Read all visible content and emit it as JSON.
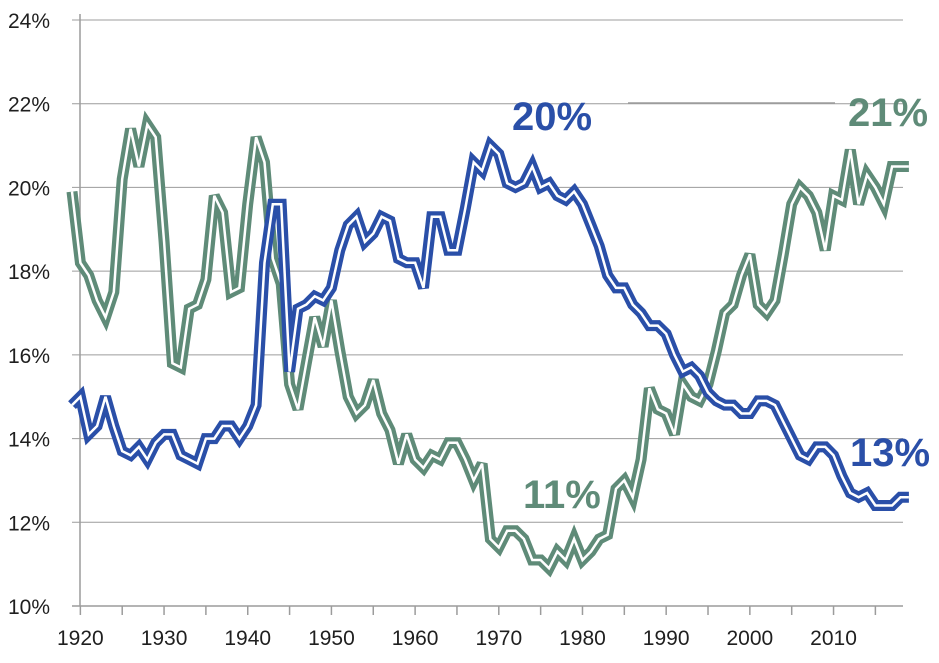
{
  "chart_data": {
    "type": "line",
    "title": "",
    "xlabel": "",
    "ylabel": "",
    "xlim": [
      1919,
      2019
    ],
    "ylim": [
      10,
      24
    ],
    "grid": true,
    "legend": "none",
    "x_ticks": [
      "1920",
      "1930",
      "1940",
      "1950",
      "1960",
      "1970",
      "1980",
      "1990",
      "2000",
      "2010"
    ],
    "y_ticks": [
      "10%",
      "12%",
      "14%",
      "16%",
      "18%",
      "20%",
      "22%",
      "24%"
    ],
    "x": [
      1919,
      1920,
      1921,
      1922,
      1923,
      1924,
      1925,
      1926,
      1927,
      1928,
      1929,
      1930,
      1931,
      1932,
      1933,
      1934,
      1935,
      1936,
      1937,
      1938,
      1939,
      1940,
      1941,
      1942,
      1943,
      1944,
      1945,
      1946,
      1947,
      1948,
      1949,
      1950,
      1951,
      1952,
      1953,
      1954,
      1955,
      1956,
      1957,
      1958,
      1959,
      1960,
      1961,
      1962,
      1963,
      1964,
      1965,
      1966,
      1967,
      1968,
      1969,
      1970,
      1971,
      1972,
      1973,
      1974,
      1975,
      1976,
      1977,
      1978,
      1979,
      1980,
      1981,
      1982,
      1983,
      1984,
      1985,
      1986,
      1987,
      1988,
      1989,
      1990,
      1991,
      1992,
      1993,
      1994,
      1995,
      1996,
      1997,
      1998,
      1999,
      2000,
      2001,
      2002,
      2003,
      2004,
      2005,
      2006,
      2007,
      2008,
      2009,
      2010,
      2011,
      2012,
      2013,
      2014,
      2015,
      2016,
      2017,
      2018,
      2019
    ],
    "series": [
      {
        "color": "#2a4fa8",
        "values": [
          14.8,
          15.0,
          14.1,
          14.3,
          15.0,
          14.3,
          13.7,
          13.6,
          13.8,
          13.5,
          13.9,
          14.1,
          14.1,
          13.6,
          13.5,
          13.4,
          14.0,
          14.0,
          14.3,
          14.3,
          14.0,
          14.3,
          14.8,
          18.2,
          19.6,
          19.6,
          15.6,
          17.1,
          17.2,
          17.4,
          17.3,
          17.6,
          18.5,
          19.1,
          19.3,
          18.7,
          18.9,
          19.3,
          19.2,
          18.3,
          18.2,
          18.2,
          17.6,
          19.3,
          19.3,
          18.5,
          18.5,
          19.5,
          20.6,
          20.4,
          21.0,
          20.8,
          20.1,
          20.0,
          20.1,
          20.5,
          20.0,
          20.1,
          19.8,
          19.7,
          19.9,
          19.6,
          19.1,
          18.6,
          17.9,
          17.6,
          17.6,
          17.2,
          17.0,
          16.7,
          16.7,
          16.5,
          16.0,
          15.6,
          15.7,
          15.5,
          15.1,
          14.9,
          14.8,
          14.8,
          14.6,
          14.6,
          14.9,
          14.9,
          14.8,
          14.4,
          14.0,
          13.6,
          13.5,
          13.8,
          13.8,
          13.6,
          13.1,
          12.7,
          12.6,
          12.7,
          12.4,
          12.4,
          12.4,
          12.6,
          12.6
        ],
        "label_value": "20%",
        "end_label": "13%"
      },
      {
        "color": "#5f8b78",
        "values": [
          19.9,
          18.2,
          17.9,
          17.3,
          16.9,
          17.5,
          20.2,
          21.4,
          20.5,
          21.5,
          21.2,
          18.7,
          15.8,
          15.7,
          17.1,
          17.2,
          17.8,
          19.8,
          19.4,
          17.5,
          17.6,
          19.6,
          21.2,
          20.6,
          18.3,
          17.7,
          15.3,
          14.7,
          15.8,
          16.9,
          16.2,
          17.3,
          16.1,
          15.0,
          14.6,
          14.8,
          15.4,
          14.6,
          14.2,
          13.4,
          14.1,
          13.5,
          13.3,
          13.6,
          13.5,
          13.9,
          13.9,
          13.5,
          13.0,
          13.4,
          11.6,
          11.4,
          11.8,
          11.8,
          11.6,
          11.1,
          11.1,
          10.9,
          11.3,
          11.1,
          11.6,
          11.1,
          11.3,
          11.6,
          11.7,
          12.8,
          13.0,
          12.6,
          13.5,
          15.2,
          14.7,
          14.6,
          14.1,
          15.3,
          15.0,
          14.9,
          15.3,
          16.1,
          17.0,
          17.2,
          17.9,
          18.4,
          17.2,
          17.0,
          17.3,
          18.4,
          19.6,
          20.0,
          19.8,
          19.4,
          18.5,
          19.8,
          19.7,
          20.9,
          19.6,
          20.3,
          20.0,
          19.6,
          20.5,
          20.5,
          20.5
        ],
        "label_value": "11%",
        "end_label": "21%"
      }
    ]
  }
}
